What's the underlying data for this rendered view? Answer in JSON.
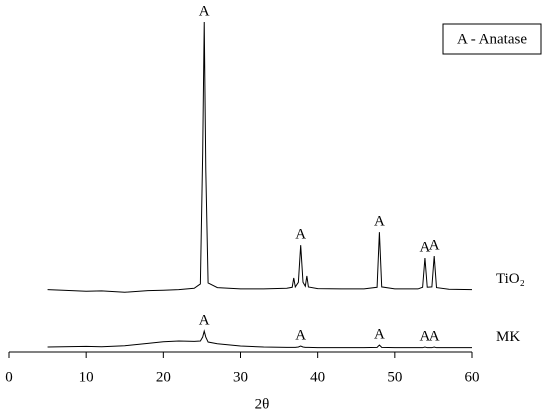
{
  "chart_data": {
    "type": "line",
    "x_label": "2θ",
    "legend_text": "A - Anatase",
    "x": [
      5,
      7,
      10,
      12,
      15,
      18,
      20,
      22,
      24,
      24.8,
      25.1,
      25.3,
      25.5,
      25.8,
      27,
      30,
      33,
      36,
      36.7,
      36.9,
      37.1,
      37.5,
      37.8,
      38.1,
      38.4,
      38.6,
      38.8,
      40,
      43,
      46,
      47.7,
      48.0,
      48.3,
      50,
      53,
      53.6,
      53.9,
      54.2,
      54.8,
      55.1,
      55.4,
      57,
      60
    ],
    "series": [
      {
        "name": "TiO₂",
        "color": "#000000",
        "values": [
          18.8,
          18.6,
          18.3,
          18.4,
          18.0,
          18.5,
          18.6,
          18.8,
          19.2,
          20.5,
          60,
          99.4,
          55,
          20.8,
          19.4,
          19.0,
          19.0,
          19.2,
          19.5,
          22.3,
          19.6,
          21,
          32.2,
          21,
          19.8,
          22.9,
          19.6,
          19.1,
          19,
          19,
          19.5,
          36.1,
          19.6,
          19,
          19,
          19.5,
          28.3,
          19.5,
          19.6,
          28.9,
          19.4,
          18.9,
          18.8
        ],
        "annotations": [
          {
            "text": "A",
            "x": 25.3
          },
          {
            "text": "A",
            "x": 37.8
          },
          {
            "text": "A",
            "x": 48.0
          },
          {
            "text": "A",
            "x": 53.9
          },
          {
            "text": "A",
            "x": 55.1
          }
        ]
      },
      {
        "name": "MK",
        "color": "#000000",
        "values": [
          1.5,
          1.6,
          1.7,
          1.6,
          1.9,
          2.6,
          3.1,
          3.3,
          3.2,
          3.3,
          4.5,
          6.3,
          4.5,
          3.0,
          2.5,
          1.8,
          1.5,
          1.4,
          1.4,
          1.4,
          1.4,
          1.5,
          1.8,
          1.5,
          1.4,
          1.4,
          1.4,
          1.3,
          1.3,
          1.3,
          1.4,
          2.1,
          1.4,
          1.3,
          1.3,
          1.3,
          1.5,
          1.3,
          1.3,
          1.5,
          1.3,
          1.3,
          1.3
        ],
        "annotations": [
          {
            "text": "A",
            "x": 25.3
          },
          {
            "text": "A",
            "x": 37.8
          },
          {
            "text": "A",
            "x": 48.0
          },
          {
            "text": "A",
            "x": 53.9
          },
          {
            "text": "A",
            "x": 55.1
          }
        ]
      }
    ],
    "xlim": [
      0,
      60
    ],
    "xticks": [
      0,
      10,
      20,
      30,
      40,
      50,
      60
    ],
    "ylim": [
      0,
      100
    ]
  }
}
